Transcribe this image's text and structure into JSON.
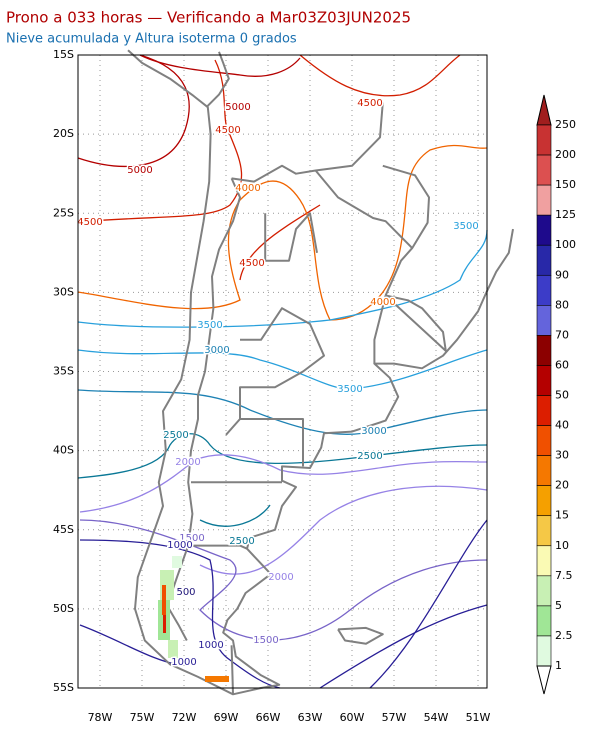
{
  "header": {
    "title": "Prono a 033 horas — Verificando a Mar03Z03JUN2025",
    "subtitle": "Nieve acumulada y Altura isoterma 0 grados"
  },
  "map": {
    "lat_labels": [
      "15S",
      "20S",
      "25S",
      "30S",
      "35S",
      "40S",
      "45S",
      "50S",
      "55S"
    ],
    "lon_labels": [
      "78W",
      "75W",
      "72W",
      "69W",
      "66W",
      "63W",
      "60W",
      "57W",
      "54W",
      "51W"
    ],
    "contour_labels": [
      {
        "label": "5000",
        "color": "#b40000"
      },
      {
        "label": "4500",
        "color": "#d21e00"
      },
      {
        "label": "4500",
        "color": "#d21e00"
      },
      {
        "label": "5000",
        "color": "#b40000"
      },
      {
        "label": "4500",
        "color": "#d21e00"
      },
      {
        "label": "4000",
        "color": "#f06400"
      },
      {
        "label": "4500",
        "color": "#d21e00"
      },
      {
        "label": "3500",
        "color": "#28a0dc"
      },
      {
        "label": "4000",
        "color": "#f06400"
      },
      {
        "label": "3500",
        "color": "#28a0dc"
      },
      {
        "label": "3000",
        "color": "#1e82b4"
      },
      {
        "label": "3500",
        "color": "#28a0dc"
      },
      {
        "label": "3000",
        "color": "#1e82b4"
      },
      {
        "label": "2500",
        "color": "#0a7896"
      },
      {
        "label": "2500",
        "color": "#0a7896"
      },
      {
        "label": "2000",
        "color": "#9682e6"
      },
      {
        "label": "1500",
        "color": "#7864c8"
      },
      {
        "label": "1000",
        "color": "#281e96"
      },
      {
        "label": "2500",
        "color": "#0a7896"
      },
      {
        "label": "2000",
        "color": "#9682e6"
      },
      {
        "label": "500",
        "color": "#1e1478"
      },
      {
        "label": "1500",
        "color": "#7864c8"
      },
      {
        "label": "1000",
        "color": "#281e96"
      },
      {
        "label": "1000",
        "color": "#281e96"
      }
    ]
  },
  "colorbar": {
    "labels": [
      250,
      200,
      150,
      125,
      100,
      90,
      80,
      70,
      60,
      50,
      40,
      30,
      20,
      15,
      10,
      7.5,
      5,
      2.5,
      1
    ],
    "colors": [
      "#c83232",
      "#dc5050",
      "#f0a0a0",
      "#1e0a8c",
      "#2828a8",
      "#3c3cc8",
      "#6464dc",
      "#8c0000",
      "#b40000",
      "#dc1e00",
      "#f05000",
      "#f57800",
      "#f5a000",
      "#f5c846",
      "#fafab4",
      "#c8f0b4",
      "#a0e696",
      "#e0fae0"
    ],
    "over_color": "#a01e1e",
    "under_color": "#ffffff"
  }
}
